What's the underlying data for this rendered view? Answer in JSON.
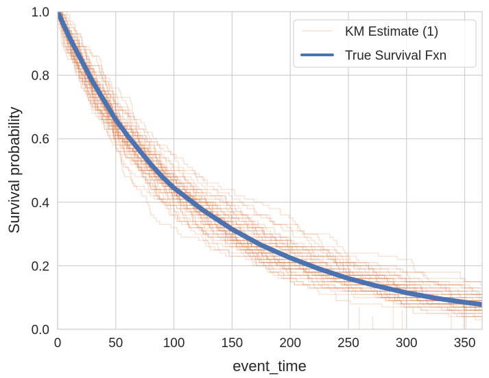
{
  "chart_data": {
    "type": "line",
    "title": "",
    "xlabel": "event_time",
    "ylabel": "Survival probability",
    "xlim": [
      0,
      365
    ],
    "ylim": [
      0.0,
      1.0
    ],
    "grid": true,
    "legend_position": "top-right",
    "x_ticks": [
      {
        "value": 0,
        "label": "0"
      },
      {
        "value": 50,
        "label": "50"
      },
      {
        "value": 100,
        "label": "100"
      },
      {
        "value": 150,
        "label": "150"
      },
      {
        "value": 200,
        "label": "200"
      },
      {
        "value": 250,
        "label": "250"
      },
      {
        "value": 300,
        "label": "300"
      },
      {
        "value": 350,
        "label": "350"
      }
    ],
    "y_ticks": [
      {
        "value": 0.0,
        "label": "0.0"
      },
      {
        "value": 0.2,
        "label": "0.2"
      },
      {
        "value": 0.4,
        "label": "0.4"
      },
      {
        "value": 0.6,
        "label": "0.6"
      },
      {
        "value": 0.8,
        "label": "0.8"
      },
      {
        "value": 1.0,
        "label": "1.0"
      }
    ],
    "series": [
      {
        "name": "KM Estimate (1)",
        "kind": "km-steps",
        "color": "#dd8452",
        "opacity": 0.25,
        "n_curves": 50,
        "n_subjects": 100
      },
      {
        "name": "True Survival Fxn",
        "kind": "smooth",
        "color": "#4c72b0",
        "x": [
          0,
          10,
          20,
          30,
          40,
          50,
          60,
          70,
          80,
          90,
          100,
          125,
          150,
          175,
          200,
          225,
          250,
          275,
          300,
          325,
          350,
          365
        ],
        "y": [
          1.0,
          0.92,
          0.85,
          0.78,
          0.72,
          0.66,
          0.61,
          0.565,
          0.52,
          0.48,
          0.445,
          0.375,
          0.315,
          0.265,
          0.225,
          0.19,
          0.16,
          0.136,
          0.115,
          0.098,
          0.085,
          0.078
        ]
      }
    ]
  }
}
